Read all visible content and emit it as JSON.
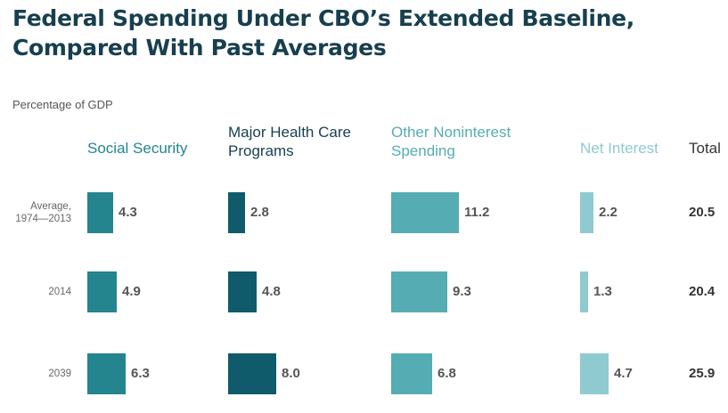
{
  "title_line1": "Federal Spending Under CBO’s Extended Baseline,",
  "title_line2": "Compared With Past Averages",
  "units_label": "Percentage of GDP",
  "columns": {
    "social_security": "Social Security",
    "health_line1": "Major Health Care",
    "health_line2": "Programs",
    "other_line1": "Other Noninterest",
    "other_line2": "Spending",
    "net_interest": "Net Interest",
    "total": "Total"
  },
  "rows": {
    "avg_line1": "Average,",
    "avg_line2": "1974—2013",
    "y2014": "2014",
    "y2039": "2039"
  },
  "chart_data": {
    "type": "bar",
    "title": "Federal Spending Under CBO’s Extended Baseline, Compared With Past Averages",
    "ylabel": "Percentage of GDP",
    "categories": [
      "Average, 1974—2013",
      "2014",
      "2039"
    ],
    "series": [
      {
        "name": "Social Security",
        "values": [
          4.3,
          4.9,
          6.3
        ],
        "color": "#24858f"
      },
      {
        "name": "Major Health Care Programs",
        "values": [
          2.8,
          4.8,
          8.0
        ],
        "color": "#0f5a6b"
      },
      {
        "name": "Other Noninterest Spending",
        "values": [
          11.2,
          9.3,
          6.8
        ],
        "color": "#55adb3"
      },
      {
        "name": "Net Interest",
        "values": [
          2.2,
          1.3,
          4.7
        ],
        "color": "#8fcad0"
      }
    ],
    "labels": [
      [
        "4.3",
        "4.9",
        "6.3"
      ],
      [
        "2.8",
        "4.8",
        "8.0"
      ],
      [
        "11.2",
        "9.3",
        "6.8"
      ],
      [
        "2.2",
        "1.3",
        "4.7"
      ]
    ],
    "totals": [
      "20.5",
      "20.4",
      "25.9"
    ],
    "header_colors": [
      "#24858f",
      "#173f4f",
      "#55adb3",
      "#8fcad0",
      "#333333"
    ]
  }
}
